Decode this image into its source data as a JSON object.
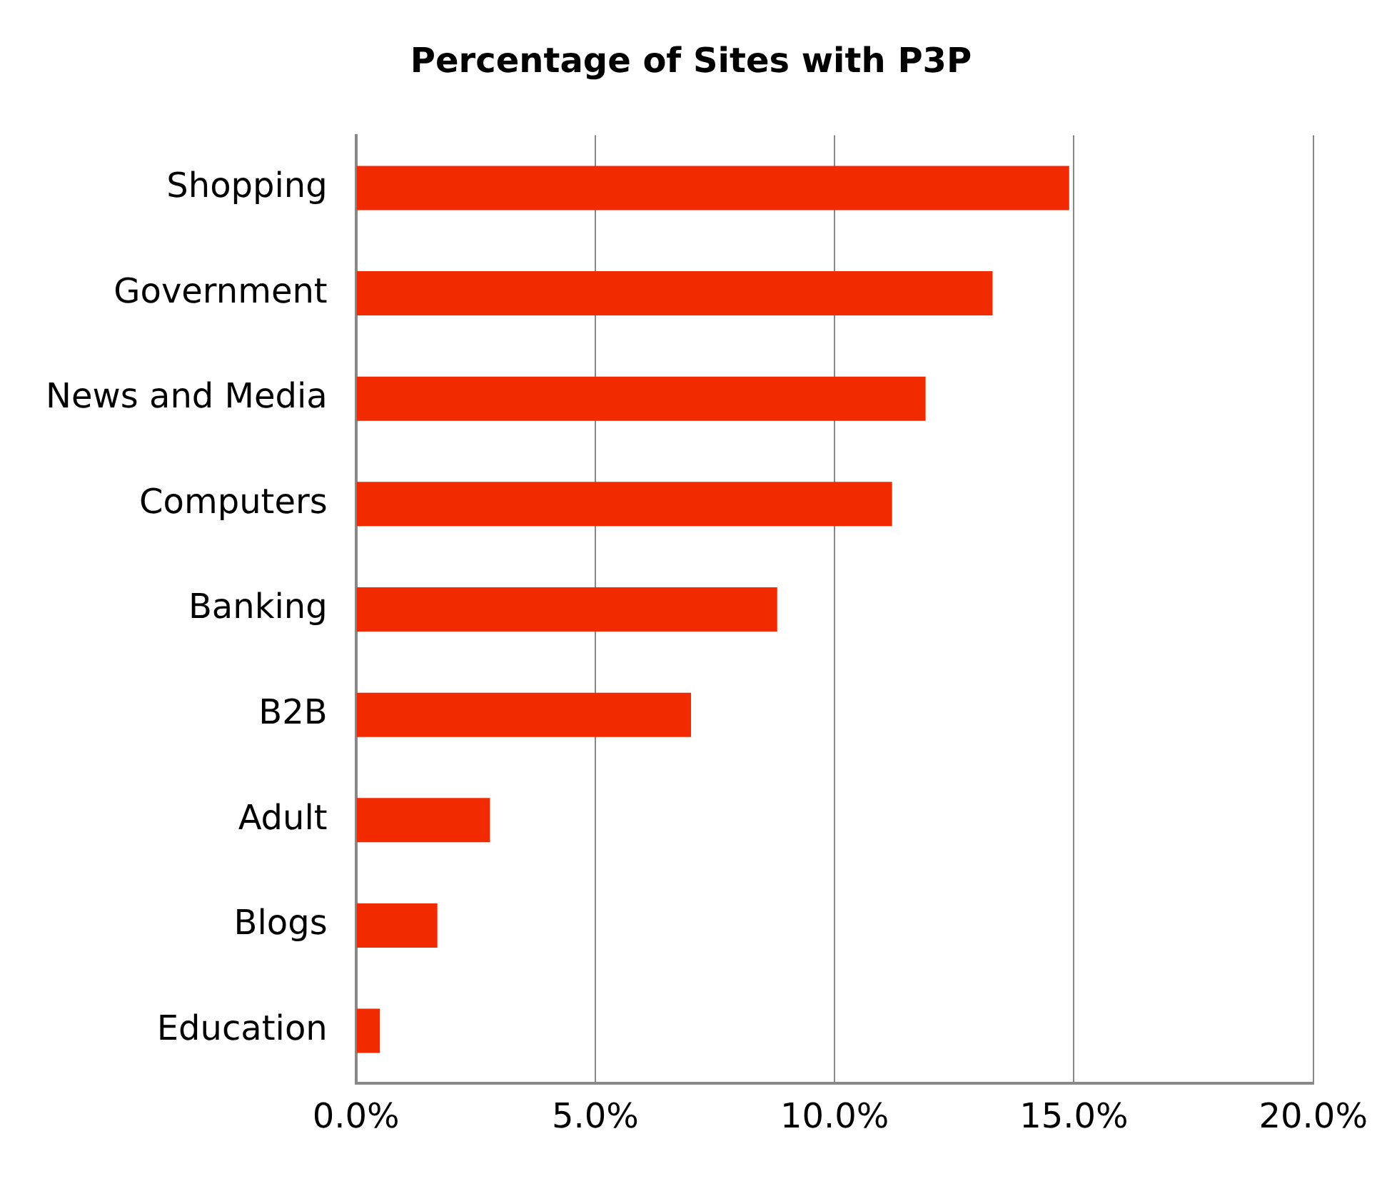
{
  "chart_data": {
    "type": "bar",
    "orientation": "horizontal",
    "title": "Percentage of Sites with P3P",
    "categories": [
      "Shopping",
      "Government",
      "News and Media",
      "Computers",
      "Banking",
      "B2B",
      "Adult",
      "Blogs",
      "Education"
    ],
    "values": [
      14.9,
      13.3,
      11.9,
      11.2,
      8.8,
      7.0,
      2.8,
      1.7,
      0.5
    ],
    "color": "#f22a00",
    "xlim": [
      0,
      20
    ],
    "xticks": [
      {
        "value": 0,
        "label": "0.0%"
      },
      {
        "value": 5,
        "label": "5.0%"
      },
      {
        "value": 10,
        "label": "10.0%"
      },
      {
        "value": 15,
        "label": "15.0%"
      },
      {
        "value": 20,
        "label": "20.0%"
      }
    ],
    "grid": "x",
    "legend": false
  }
}
